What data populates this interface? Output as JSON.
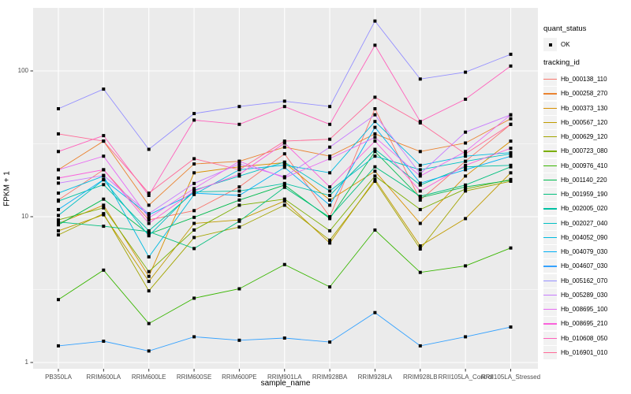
{
  "figure": {
    "y_axis": {
      "title": "FPKM + 1",
      "tick_labels": [
        "100",
        "10",
        "1"
      ],
      "tick_values": [
        100,
        10,
        1
      ]
    },
    "x_axis": {
      "title": "sample_name"
    },
    "legend": {
      "quant_status_title": "quant_status",
      "quant_status_items": [
        {
          "label": "OK",
          "marker": "black-point"
        }
      ],
      "tracking_id_title": "tracking_id"
    },
    "colors": {
      "panel_background": "#EBEBEB",
      "gridline": "#FFFFFF",
      "tick_text": "#4D4D4D",
      "axis_title_text": "#000000",
      "legend_key_background": "#F2F2F2",
      "point": "#000000"
    }
  },
  "chart_data": {
    "type": "line",
    "title": "",
    "xlabel": "sample_name",
    "ylabel": "FPKM + 1",
    "y_scale": "log10",
    "ylim": [
      1,
      270
    ],
    "y_ticks": [
      1,
      10,
      100
    ],
    "grid": "white major gridlines at 1/10/100 with minor log midlines, gray panel",
    "legend_position": "right",
    "marker": "small black square on every point (quant_status = OK)",
    "categories": [
      "PB350LA",
      "RRIM600LA",
      "RRIM600LE",
      "RRIM600SE",
      "RRIM600PE",
      "RRIM901LA",
      "RRIM928BA",
      "RRIM928LA",
      "RRIM928LB",
      "RRII105LA_Control",
      "RRII105LA_Stressed"
    ],
    "series": [
      {
        "name": "Hb_000138_110",
        "color": "#F8766D",
        "values": [
          13,
          21,
          9.5,
          11,
          16,
          27,
          10,
          55,
          13,
          24,
          43
        ]
      },
      {
        "name": "Hb_000258_270",
        "color": "#EA8331",
        "values": [
          21,
          33,
          12,
          23,
          24,
          30,
          26,
          37,
          28,
          32,
          47
        ]
      },
      {
        "name": "Hb_000373_130",
        "color": "#D89000",
        "values": [
          9,
          12,
          3.9,
          20,
          22,
          23.5,
          13,
          20.5,
          9,
          19,
          33
        ]
      },
      {
        "name": "Hb_000567_120",
        "color": "#C09B00",
        "values": [
          8,
          10.3,
          3.6,
          9,
          9.5,
          12.8,
          6.6,
          18,
          6.3,
          9.7,
          20
        ]
      },
      {
        "name": "Hb_000629_120",
        "color": "#A3A500",
        "values": [
          7.5,
          10.5,
          3.1,
          7.2,
          8.5,
          12,
          6.9,
          17.5,
          6,
          15,
          17.5
        ]
      },
      {
        "name": "Hb_000723_080",
        "color": "#7CAE00",
        "values": [
          9.5,
          11.5,
          4.2,
          8.1,
          12,
          13.2,
          8,
          19,
          11.2,
          15.5,
          18
        ]
      },
      {
        "name": "Hb_000976_410",
        "color": "#39B600",
        "values": [
          2.7,
          4.3,
          1.85,
          2.76,
          3.2,
          4.7,
          3.3,
          8.1,
          4.15,
          4.6,
          6.1
        ]
      },
      {
        "name": "Hb_001140_220",
        "color": "#00BB4E",
        "values": [
          8.8,
          13.2,
          7.6,
          9.9,
          13,
          16.5,
          9.7,
          28,
          13.5,
          16,
          17.8
        ]
      },
      {
        "name": "Hb_001959_190",
        "color": "#00BF7D",
        "values": [
          9.2,
          8.6,
          7.9,
          6.05,
          9.3,
          15.9,
          9.9,
          22,
          13.8,
          16.5,
          22
        ]
      },
      {
        "name": "Hb_002005_020",
        "color": "#00C1A3",
        "values": [
          12.8,
          16.6,
          8,
          14.8,
          15,
          16.9,
          14,
          29,
          16.5,
          22,
          22.5
        ]
      },
      {
        "name": "Hb_002027_040",
        "color": "#00BFC4",
        "values": [
          10.2,
          17.9,
          7.4,
          15.2,
          19,
          23.7,
          15,
          26,
          21,
          24,
          27
        ]
      },
      {
        "name": "Hb_004052_090",
        "color": "#00BAE0",
        "values": [
          14.5,
          19,
          5.3,
          14.2,
          21,
          22.6,
          20,
          45,
          22.5,
          26,
          27.5
        ]
      },
      {
        "name": "Hb_004079_030",
        "color": "#00B0F6",
        "values": [
          11.2,
          18,
          10.3,
          14.5,
          14,
          21.8,
          12,
          41,
          17,
          21,
          26
        ]
      },
      {
        "name": "Hb_004607_030",
        "color": "#35A2FF",
        "values": [
          1.3,
          1.4,
          1.2,
          1.5,
          1.42,
          1.47,
          1.38,
          2.2,
          1.3,
          1.5,
          1.75
        ]
      },
      {
        "name": "Hb_005162_070",
        "color": "#9590FF",
        "values": [
          55,
          75,
          29,
          51,
          57,
          62,
          57,
          220,
          88,
          98,
          130
        ]
      },
      {
        "name": "Hb_005289_030",
        "color": "#C77CFF",
        "values": [
          17,
          19.2,
          10.5,
          16.9,
          23,
          18.8,
          30,
          50,
          19.7,
          38,
          50
        ]
      },
      {
        "name": "Hb_008695_100",
        "color": "#E76BF3",
        "values": [
          21,
          26,
          9.8,
          15.6,
          24,
          18.5,
          25,
          35,
          19,
          28,
          50
        ]
      },
      {
        "name": "Hb_008695_210",
        "color": "#FA62DB",
        "values": [
          18.4,
          21,
          9,
          15,
          19.5,
          32,
          16,
          33,
          15,
          22.5,
          29.5
        ]
      },
      {
        "name": "Hb_010608_050",
        "color": "#FF62BC",
        "values": [
          28,
          36,
          14,
          46,
          43,
          57,
          43,
          150,
          45,
          64,
          108
        ]
      },
      {
        "name": "Hb_016901_010",
        "color": "#FF6A98",
        "values": [
          37,
          33,
          14.5,
          25,
          21,
          33,
          34,
          66,
          44,
          27,
          43
        ]
      }
    ]
  }
}
